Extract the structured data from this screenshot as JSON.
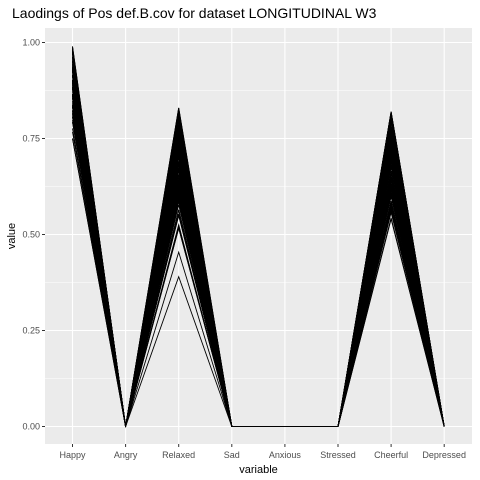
{
  "chart_data": {
    "type": "line",
    "title": "Laodings of Pos def.B.cov for dataset LONGITUDINAL W3",
    "xlabel": "variable",
    "ylabel": "value",
    "categories": [
      "Happy",
      "Angry",
      "Relaxed",
      "Sad",
      "Anxious",
      "Stressed",
      "Cheerful",
      "Depressed"
    ],
    "y_ticks": [
      "0.00",
      "0.25",
      "0.50",
      "0.75",
      "1.00"
    ],
    "ylim": [
      0.0,
      1.0
    ],
    "grid": true,
    "panel_background": "#ebebeb",
    "grid_color": "#ffffff",
    "line_color": "#000000",
    "happy_range": [
      0.75,
      0.99
    ],
    "relaxed_range": [
      0.39,
      0.83
    ],
    "cheerful_range": [
      0.54,
      0.82
    ],
    "constant_values": {
      "Angry": 0.0,
      "Sad": 0.0,
      "Anxious": 0.0,
      "Stressed": 0.0,
      "Depressed": 0.0
    },
    "num_lines": 120,
    "legend": "none"
  }
}
